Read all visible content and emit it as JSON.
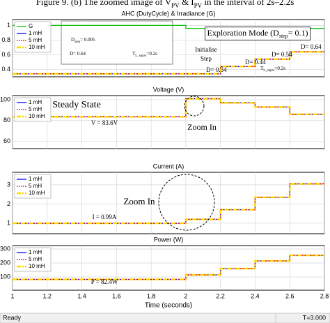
{
  "caption": [
    "Figure 9. (b) The zoomed image of V",
    "PV",
    " & I",
    "PV",
    " in the interval of 2s–2.2s"
  ],
  "chart_data": [
    {
      "type": "line",
      "title": "AHC (DutyCycle) & Irradiance (G)",
      "xlim": [
        1,
        2.8
      ],
      "xticks": [
        1,
        1.2,
        1.4,
        1.6,
        1.8,
        2,
        2.2,
        2.4,
        2.6,
        2.8
      ],
      "ylim": [
        0.3,
        1.08
      ],
      "yticks": [
        0.4,
        0.6,
        0.8,
        1
      ],
      "grid": true,
      "legend": "upper left",
      "x": [
        1,
        2,
        2,
        2.2,
        2.2,
        2.4,
        2.4,
        2.6,
        2.6,
        2.8
      ],
      "series": [
        {
          "name": "G",
          "color": "#00c000",
          "linestyle": "solid",
          "x": [
            1,
            2,
            2,
            2.8
          ],
          "values": [
            1,
            1,
            0.96,
            0.96
          ]
        },
        {
          "name": "1 mH",
          "color": "#0000ff",
          "linestyle": "solid",
          "values": [
            0.34,
            0.34,
            0.34,
            0.34,
            0.44,
            0.44,
            0.54,
            0.54,
            0.64,
            0.64
          ]
        },
        {
          "name": "5 mH",
          "color": "#ff0000",
          "linestyle": "dotted",
          "values": [
            0.34,
            0.34,
            0.34,
            0.34,
            0.44,
            0.44,
            0.54,
            0.54,
            0.64,
            0.64
          ]
        },
        {
          "name": "10 mH",
          "color": "#ffd400",
          "linestyle": "dashdot",
          "values": [
            0.34,
            0.34,
            0.34,
            0.34,
            0.44,
            0.44,
            0.54,
            0.54,
            0.64,
            0.64
          ]
        }
      ],
      "annotations": [
        [
          "Exploration Mode (D",
          "step",
          "= 0.1)"
        ],
        [
          "Initialise"
        ],
        [
          "Step"
        ],
        [
          "D= 0.34"
        ],
        [
          "D= 0.44"
        ],
        [
          "D= 0.54"
        ],
        [
          "D= 0.64"
        ],
        [
          "T",
          "L_sopw",
          "=0.2s"
        ],
        [
          "D= 0.64"
        ],
        [
          "D",
          "step",
          "= 0.005"
        ],
        [
          "T",
          "L_sopw",
          "=0.2s"
        ]
      ]
    },
    {
      "type": "line",
      "title": "Voltage (V)",
      "xlim": [
        1,
        2.8
      ],
      "xticks": [
        1,
        1.2,
        1.4,
        1.6,
        1.8,
        2,
        2.2,
        2.4,
        2.6,
        2.8
      ],
      "ylim": [
        53,
        104
      ],
      "yticks": [
        60,
        80,
        100
      ],
      "grid": true,
      "legend": "upper left",
      "x": [
        1,
        2,
        2,
        2.2,
        2.2,
        2.4,
        2.4,
        2.6,
        2.6,
        2.8
      ],
      "series": [
        {
          "name": "1 mH",
          "color": "#0000ff",
          "linestyle": "solid",
          "values": [
            83.6,
            83.6,
            101,
            101,
            97,
            97,
            93,
            93,
            86,
            86
          ]
        },
        {
          "name": "5 mH",
          "color": "#ff0000",
          "linestyle": "dotted",
          "values": [
            83.6,
            83.6,
            101,
            101,
            97,
            97,
            93,
            93,
            86,
            86
          ]
        },
        {
          "name": "10 mH",
          "color": "#ffd400",
          "linestyle": "dashdot",
          "values": [
            83.6,
            83.6,
            101,
            101,
            97,
            97,
            93,
            93,
            86,
            86
          ]
        }
      ],
      "annotations": [
        [
          "Steady State"
        ],
        [
          "V = 83.6V"
        ],
        [
          "Zoom In"
        ]
      ]
    },
    {
      "type": "line",
      "title": "Current (A)",
      "xlim": [
        1,
        2.8
      ],
      "xticks": [
        1,
        1.2,
        1.4,
        1.6,
        1.8,
        2,
        2.2,
        2.4,
        2.6,
        2.8
      ],
      "ylim": [
        0.45,
        3.65
      ],
      "yticks": [
        1,
        2,
        3
      ],
      "grid": true,
      "legend": "upper left",
      "x": [
        1,
        2,
        2,
        2.2,
        2.2,
        2.4,
        2.4,
        2.6,
        2.6,
        2.8
      ],
      "series": [
        {
          "name": "1 mH",
          "color": "#0000ff",
          "linestyle": "solid",
          "values": [
            0.99,
            0.99,
            1.2,
            1.2,
            1.7,
            1.7,
            2.35,
            2.35,
            3.05,
            3.05
          ]
        },
        {
          "name": "5 mH",
          "color": "#ff0000",
          "linestyle": "dotted",
          "values": [
            0.99,
            0.99,
            1.2,
            1.2,
            1.7,
            1.7,
            2.35,
            2.35,
            3.05,
            3.05
          ]
        },
        {
          "name": "10 mH",
          "color": "#ffd400",
          "linestyle": "dashdot",
          "values": [
            0.99,
            0.99,
            1.2,
            1.2,
            1.7,
            1.7,
            2.35,
            2.35,
            3.05,
            3.05
          ]
        }
      ],
      "annotations": [
        [
          "Zoom In"
        ],
        [
          "I = 0.99A"
        ]
      ]
    },
    {
      "type": "line",
      "title": "Power (W)",
      "xlim": [
        1,
        2.8
      ],
      "xticks": [
        1,
        1.2,
        1.4,
        1.6,
        1.8,
        2,
        2.2,
        2.4,
        2.6,
        2.8
      ],
      "ylim": [
        5,
        325
      ],
      "yticks": [
        100,
        200,
        300
      ],
      "grid": true,
      "legend": "upper left",
      "xlabel": "Time (seconds)",
      "x": [
        1,
        2,
        2,
        2.2,
        2.2,
        2.4,
        2.4,
        2.6,
        2.6,
        2.8
      ],
      "series": [
        {
          "name": "1 mH",
          "color": "#0000ff",
          "linestyle": "solid",
          "values": [
            82.4,
            82.4,
            115,
            115,
            160,
            160,
            215,
            215,
            255,
            255
          ]
        },
        {
          "name": "5 mH",
          "color": "#ff0000",
          "linestyle": "dotted",
          "values": [
            82.4,
            82.4,
            115,
            115,
            160,
            160,
            215,
            215,
            255,
            255
          ]
        },
        {
          "name": "10 mH",
          "color": "#ffd400",
          "linestyle": "dashdot",
          "values": [
            82.4,
            82.4,
            115,
            115,
            160,
            160,
            215,
            215,
            255,
            255
          ]
        }
      ],
      "annotations": [
        [
          "P = 82.4W"
        ]
      ]
    }
  ],
  "status": {
    "left": "Ready",
    "right": "T=3.000"
  }
}
